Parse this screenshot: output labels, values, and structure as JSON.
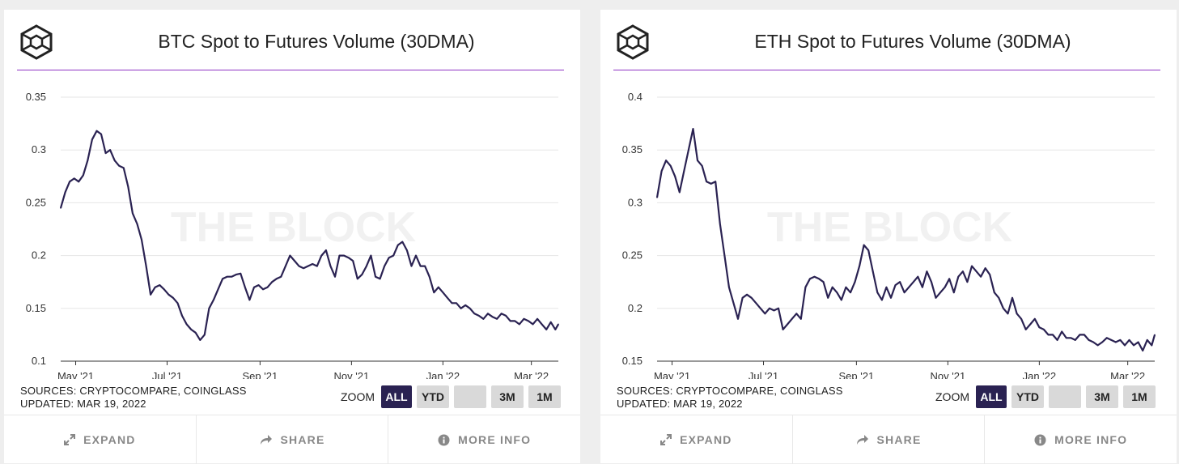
{
  "watermark": "THE BLOCK",
  "colors": {
    "line": "#2a2252",
    "accent": "#8f34c4",
    "active_zoom": "#2a2252"
  },
  "charts": [
    {
      "title": "BTC Spot to Futures Volume (30DMA)",
      "sources": "SOURCES: CRYPTOCOMPARE, COINGLASS",
      "updated": "UPDATED: MAR 19, 2022",
      "zoom_label": "ZOOM",
      "zoom_buttons": [
        "ALL",
        "YTD",
        "",
        "3M",
        "1M"
      ],
      "active_zoom": "ALL",
      "footer": {
        "expand": "EXPAND",
        "share": "SHARE",
        "more_info": "MORE INFO"
      }
    },
    {
      "title": "ETH Spot to Futures Volume (30DMA)",
      "sources": "SOURCES: CRYPTOCOMPARE, COINGLASS",
      "updated": "UPDATED: MAR 19, 2022",
      "zoom_label": "ZOOM",
      "zoom_buttons": [
        "ALL",
        "YTD",
        "",
        "3M",
        "1M"
      ],
      "active_zoom": "ALL",
      "footer": {
        "expand": "EXPAND",
        "share": "SHARE",
        "more_info": "MORE INFO"
      }
    }
  ],
  "chart_data": [
    {
      "type": "line",
      "title": "BTC Spot to Futures Volume (30DMA)",
      "xlabel": "",
      "ylabel": "",
      "ylim": [
        0.1,
        0.35
      ],
      "yticks": [
        0.1,
        0.15,
        0.2,
        0.25,
        0.3,
        0.35
      ],
      "yticklabels": [
        "0.1",
        "0.15",
        "0.2",
        "0.25",
        "0.3",
        "0.35"
      ],
      "xlim": [
        "2021-04-21",
        "2022-03-19"
      ],
      "xticks": [
        "2021-05-01",
        "2021-07-01",
        "2021-09-01",
        "2021-11-01",
        "2022-01-01",
        "2022-03-01"
      ],
      "xticklabels": [
        "May '21",
        "Jul '21",
        "Sep '21",
        "Nov '21",
        "Jan '22",
        "Mar '22"
      ],
      "grid": true,
      "series": [
        {
          "x": [
            "2021-04-21",
            "2021-04-24",
            "2021-04-27",
            "2021-04-30",
            "2021-05-03",
            "2021-05-06",
            "2021-05-09",
            "2021-05-12",
            "2021-05-15",
            "2021-05-18",
            "2021-05-21",
            "2021-05-24",
            "2021-05-27",
            "2021-05-30",
            "2021-06-02",
            "2021-06-05",
            "2021-06-08",
            "2021-06-11",
            "2021-06-14",
            "2021-06-17",
            "2021-06-20",
            "2021-06-23",
            "2021-06-26",
            "2021-06-29",
            "2021-07-02",
            "2021-07-05",
            "2021-07-08",
            "2021-07-11",
            "2021-07-14",
            "2021-07-17",
            "2021-07-20",
            "2021-07-23",
            "2021-07-26",
            "2021-07-29",
            "2021-08-01",
            "2021-08-04",
            "2021-08-07",
            "2021-08-10",
            "2021-08-13",
            "2021-08-16",
            "2021-08-19",
            "2021-08-22",
            "2021-08-25",
            "2021-08-28",
            "2021-08-31",
            "2021-09-03",
            "2021-09-06",
            "2021-09-09",
            "2021-09-12",
            "2021-09-15",
            "2021-09-18",
            "2021-09-21",
            "2021-09-24",
            "2021-09-27",
            "2021-09-30",
            "2021-10-03",
            "2021-10-06",
            "2021-10-09",
            "2021-10-12",
            "2021-10-15",
            "2021-10-18",
            "2021-10-21",
            "2021-10-24",
            "2021-10-27",
            "2021-10-30",
            "2021-11-02",
            "2021-11-05",
            "2021-11-08",
            "2021-11-11",
            "2021-11-14",
            "2021-11-17",
            "2021-11-20",
            "2021-11-23",
            "2021-11-26",
            "2021-11-29",
            "2021-12-02",
            "2021-12-05",
            "2021-12-08",
            "2021-12-11",
            "2021-12-14",
            "2021-12-17",
            "2021-12-20",
            "2021-12-23",
            "2021-12-26",
            "2021-12-29",
            "2022-01-01",
            "2022-01-04",
            "2022-01-07",
            "2022-01-10",
            "2022-01-13",
            "2022-01-16",
            "2022-01-19",
            "2022-01-22",
            "2022-01-25",
            "2022-01-28",
            "2022-01-31",
            "2022-02-03",
            "2022-02-06",
            "2022-02-09",
            "2022-02-12",
            "2022-02-15",
            "2022-02-18",
            "2022-02-21",
            "2022-02-24",
            "2022-02-27",
            "2022-03-02",
            "2022-03-05",
            "2022-03-08",
            "2022-03-11",
            "2022-03-14",
            "2022-03-17",
            "2022-03-19"
          ],
          "values": [
            0.245,
            0.26,
            0.27,
            0.273,
            0.27,
            0.276,
            0.29,
            0.31,
            0.318,
            0.315,
            0.297,
            0.3,
            0.29,
            0.285,
            0.283,
            0.265,
            0.24,
            0.23,
            0.215,
            0.19,
            0.163,
            0.17,
            0.172,
            0.168,
            0.163,
            0.16,
            0.155,
            0.143,
            0.135,
            0.13,
            0.127,
            0.12,
            0.125,
            0.15,
            0.158,
            0.168,
            0.178,
            0.18,
            0.18,
            0.182,
            0.183,
            0.17,
            0.158,
            0.17,
            0.172,
            0.168,
            0.17,
            0.175,
            0.178,
            0.18,
            0.19,
            0.2,
            0.195,
            0.19,
            0.188,
            0.19,
            0.192,
            0.19,
            0.2,
            0.205,
            0.19,
            0.18,
            0.2,
            0.2,
            0.198,
            0.195,
            0.178,
            0.182,
            0.19,
            0.2,
            0.18,
            0.178,
            0.19,
            0.198,
            0.2,
            0.21,
            0.213,
            0.205,
            0.19,
            0.2,
            0.19,
            0.19,
            0.18,
            0.165,
            0.17,
            0.165,
            0.16,
            0.155,
            0.155,
            0.15,
            0.153,
            0.15,
            0.145,
            0.143,
            0.14,
            0.145,
            0.142,
            0.14,
            0.145,
            0.143,
            0.138,
            0.138,
            0.135,
            0.14,
            0.138,
            0.135,
            0.14,
            0.135,
            0.13,
            0.137,
            0.13,
            0.135
          ]
        }
      ]
    },
    {
      "type": "line",
      "title": "ETH Spot to Futures Volume (30DMA)",
      "xlabel": "",
      "ylabel": "",
      "ylim": [
        0.15,
        0.4
      ],
      "yticks": [
        0.15,
        0.2,
        0.25,
        0.3,
        0.35,
        0.4
      ],
      "yticklabels": [
        "0.15",
        "0.2",
        "0.25",
        "0.3",
        "0.35",
        "0.4"
      ],
      "xlim": [
        "2021-04-21",
        "2022-03-19"
      ],
      "xticks": [
        "2021-05-01",
        "2021-07-01",
        "2021-09-01",
        "2021-11-01",
        "2022-01-01",
        "2022-03-01"
      ],
      "xticklabels": [
        "May '21",
        "Jul '21",
        "Sep '21",
        "Nov '21",
        "Jan '22",
        "Mar '22"
      ],
      "grid": true,
      "series": [
        {
          "x": [
            "2021-04-21",
            "2021-04-24",
            "2021-04-27",
            "2021-04-30",
            "2021-05-03",
            "2021-05-06",
            "2021-05-09",
            "2021-05-12",
            "2021-05-15",
            "2021-05-18",
            "2021-05-21",
            "2021-05-24",
            "2021-05-27",
            "2021-05-30",
            "2021-06-02",
            "2021-06-05",
            "2021-06-08",
            "2021-06-11",
            "2021-06-14",
            "2021-06-17",
            "2021-06-20",
            "2021-06-23",
            "2021-06-26",
            "2021-06-29",
            "2021-07-02",
            "2021-07-05",
            "2021-07-08",
            "2021-07-11",
            "2021-07-14",
            "2021-07-17",
            "2021-07-20",
            "2021-07-23",
            "2021-07-26",
            "2021-07-29",
            "2021-08-01",
            "2021-08-04",
            "2021-08-07",
            "2021-08-10",
            "2021-08-13",
            "2021-08-16",
            "2021-08-19",
            "2021-08-22",
            "2021-08-25",
            "2021-08-28",
            "2021-08-31",
            "2021-09-03",
            "2021-09-06",
            "2021-09-09",
            "2021-09-12",
            "2021-09-15",
            "2021-09-18",
            "2021-09-21",
            "2021-09-24",
            "2021-09-27",
            "2021-09-30",
            "2021-10-03",
            "2021-10-06",
            "2021-10-09",
            "2021-10-12",
            "2021-10-15",
            "2021-10-18",
            "2021-10-21",
            "2021-10-24",
            "2021-10-27",
            "2021-10-30",
            "2021-11-02",
            "2021-11-05",
            "2021-11-08",
            "2021-11-11",
            "2021-11-14",
            "2021-11-17",
            "2021-11-20",
            "2021-11-23",
            "2021-11-26",
            "2021-11-29",
            "2021-12-02",
            "2021-12-05",
            "2021-12-08",
            "2021-12-11",
            "2021-12-14",
            "2021-12-17",
            "2021-12-20",
            "2021-12-23",
            "2021-12-26",
            "2021-12-29",
            "2022-01-01",
            "2022-01-04",
            "2022-01-07",
            "2022-01-10",
            "2022-01-13",
            "2022-01-16",
            "2022-01-19",
            "2022-01-22",
            "2022-01-25",
            "2022-01-28",
            "2022-01-31",
            "2022-02-03",
            "2022-02-06",
            "2022-02-09",
            "2022-02-12",
            "2022-02-15",
            "2022-02-18",
            "2022-02-21",
            "2022-02-24",
            "2022-02-27",
            "2022-03-02",
            "2022-03-05",
            "2022-03-08",
            "2022-03-11",
            "2022-03-14",
            "2022-03-17",
            "2022-03-19"
          ],
          "values": [
            0.305,
            0.33,
            0.34,
            0.335,
            0.325,
            0.31,
            0.33,
            0.35,
            0.37,
            0.34,
            0.335,
            0.32,
            0.318,
            0.32,
            0.28,
            0.25,
            0.22,
            0.205,
            0.19,
            0.21,
            0.213,
            0.21,
            0.205,
            0.2,
            0.195,
            0.2,
            0.198,
            0.2,
            0.18,
            0.185,
            0.19,
            0.195,
            0.19,
            0.22,
            0.228,
            0.23,
            0.228,
            0.225,
            0.21,
            0.22,
            0.215,
            0.208,
            0.22,
            0.215,
            0.225,
            0.24,
            0.26,
            0.255,
            0.235,
            0.215,
            0.208,
            0.22,
            0.21,
            0.222,
            0.225,
            0.215,
            0.22,
            0.225,
            0.23,
            0.22,
            0.235,
            0.225,
            0.21,
            0.215,
            0.22,
            0.228,
            0.215,
            0.23,
            0.235,
            0.225,
            0.24,
            0.235,
            0.23,
            0.238,
            0.232,
            0.215,
            0.21,
            0.2,
            0.195,
            0.21,
            0.195,
            0.19,
            0.18,
            0.185,
            0.19,
            0.182,
            0.18,
            0.175,
            0.175,
            0.17,
            0.178,
            0.172,
            0.172,
            0.17,
            0.175,
            0.175,
            0.17,
            0.168,
            0.165,
            0.168,
            0.172,
            0.17,
            0.168,
            0.17,
            0.165,
            0.17,
            0.165,
            0.168,
            0.16,
            0.17,
            0.165,
            0.175
          ]
        }
      ]
    }
  ]
}
